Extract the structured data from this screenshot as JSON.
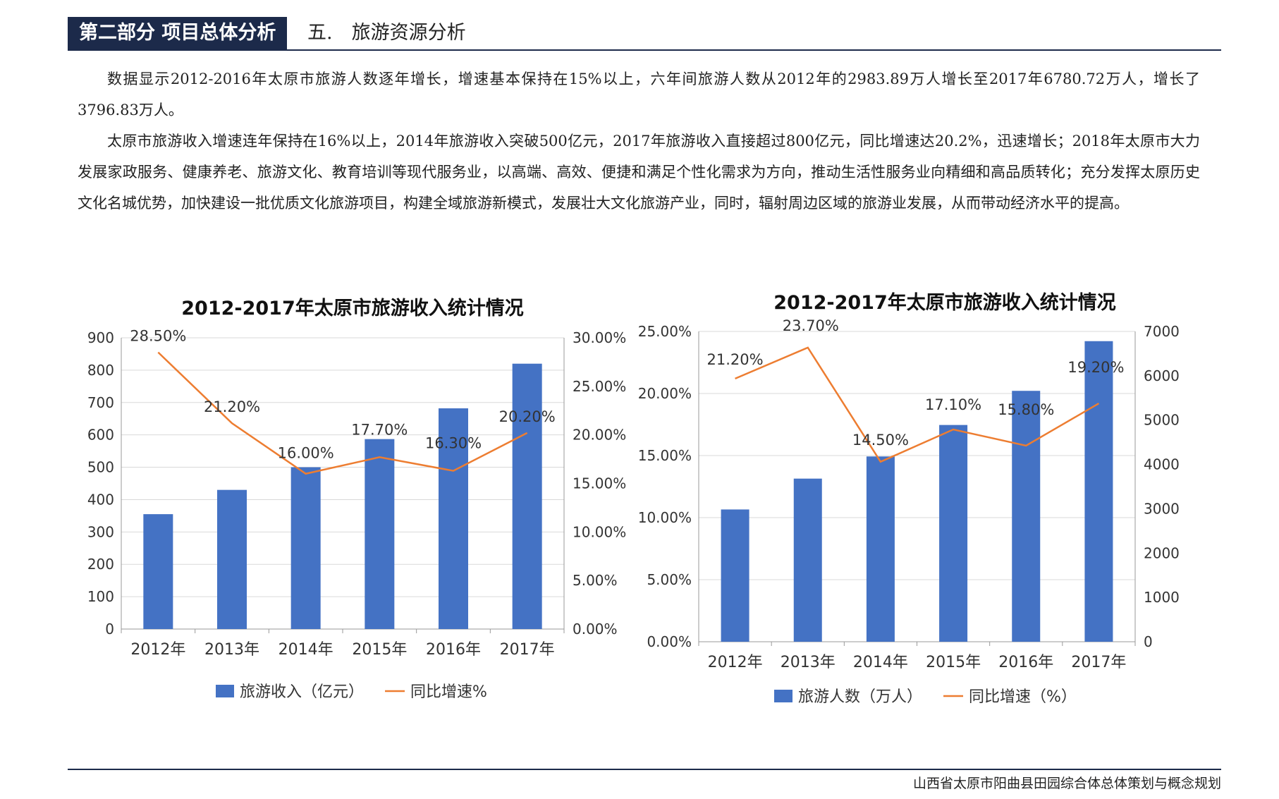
{
  "header": {
    "section_tag": "第二部分 项目总体分析",
    "subtitle": "五.　旅游资源分析"
  },
  "body": {
    "paragraphs": [
      "数据显示2012-2016年太原市旅游人数逐年增长，增速基本保持在15%以上，六年间旅游人数从2012年的2983.89万人增长至2017年6780.72万人，增长了3796.83万人。",
      "太原市旅游收入增速连年保持在16%以上，2014年旅游收入突破500亿元，2017年旅游收入直接超过800亿元，同比增速达20.2%，迅速增长；2018年太原市大力发展家政服务、健康养老、旅游文化、教育培训等现代服务业，以高端、高效、便捷和满足个性化需求为方向，推动生活性服务业向精细和高品质转化；充分发挥太原历史文化名城优势，加快建设一批优质文化旅游项目，构建全域旅游新模式，发展壮大文化旅游产业，同时，辐射周边区域的旅游业发展，从而带动经济水平的提高。"
    ]
  },
  "footer": {
    "text": "山西省太原市阳曲县田园综合体总体策划与概念规划"
  },
  "colors": {
    "bar": "#4472c4",
    "line": "#ed7d31",
    "header_bg": "#1c2a4a"
  },
  "chart_data": [
    {
      "type": "bar",
      "title": "2012-2017年太原市旅游收入统计情况",
      "categories": [
        "2012年",
        "2013年",
        "2014年",
        "2015年",
        "2016年",
        "2017年"
      ],
      "series": [
        {
          "name": "旅游收入（亿元）",
          "type": "bar",
          "axis": "left",
          "values": [
            355,
            430,
            500,
            587,
            682,
            820
          ]
        },
        {
          "name": "同比增速%",
          "type": "line",
          "axis": "right",
          "values": [
            28.5,
            21.2,
            16.0,
            17.7,
            16.3,
            20.2
          ],
          "labels": [
            "28.50%",
            "21.20%",
            "16.00%",
            "17.70%",
            "16.30%",
            "20.20%"
          ]
        }
      ],
      "y_left": {
        "min": 0,
        "max": 900,
        "ticks": [
          "0",
          "100",
          "200",
          "300",
          "400",
          "500",
          "600",
          "700",
          "800",
          "900"
        ]
      },
      "y_right": {
        "min": 0,
        "max": 30,
        "ticks": [
          "0.00%",
          "5.00%",
          "10.00%",
          "15.00%",
          "20.00%",
          "25.00%",
          "30.00%"
        ]
      },
      "grid": true,
      "legend_position": "bottom"
    },
    {
      "type": "bar",
      "title": "2012-2017年太原市旅游收入统计情况",
      "categories": [
        "2012年",
        "2013年",
        "2014年",
        "2015年",
        "2016年",
        "2017年"
      ],
      "series": [
        {
          "name": "旅游人数（万人）",
          "type": "bar",
          "axis": "right",
          "values": [
            2984,
            3680,
            4180,
            4890,
            5660,
            6781
          ]
        },
        {
          "name": "同比增速（%）",
          "type": "line",
          "axis": "left",
          "values": [
            21.2,
            23.7,
            14.5,
            17.1,
            15.8,
            19.2
          ],
          "labels": [
            "21.20%",
            "23.70%",
            "14.50%",
            "17.10%",
            "15.80%",
            "19.20%"
          ]
        }
      ],
      "y_left": {
        "min": 0,
        "max": 25,
        "ticks": [
          "0.00%",
          "5.00%",
          "10.00%",
          "15.00%",
          "20.00%",
          "25.00%"
        ]
      },
      "y_right": {
        "min": 0,
        "max": 7000,
        "ticks": [
          "0",
          "1000",
          "2000",
          "3000",
          "4000",
          "5000",
          "6000",
          "7000"
        ]
      },
      "grid": true,
      "legend_position": "bottom"
    }
  ]
}
